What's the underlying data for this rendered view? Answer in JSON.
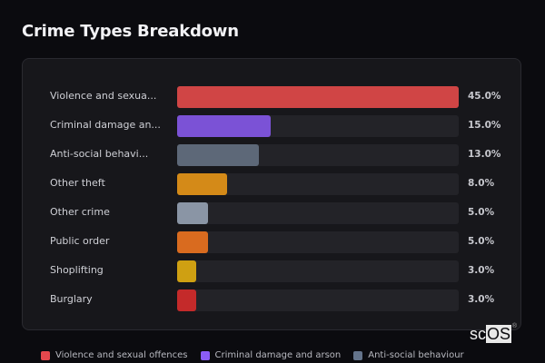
{
  "header": {
    "title": "Crime Types Breakdown"
  },
  "chart_data": {
    "type": "bar",
    "orientation": "horizontal",
    "title": "Crime Types Breakdown",
    "categories": [
      "Violence and sexual offences",
      "Criminal damage and arson",
      "Anti-social behaviour",
      "Other theft",
      "Other crime",
      "Public order",
      "Shoplifting",
      "Burglary"
    ],
    "display_labels": [
      "Violence and sexua...",
      "Criminal damage an...",
      "Anti-social behavi...",
      "Other theft",
      "Other crime",
      "Public order",
      "Shoplifting",
      "Burglary"
    ],
    "values": [
      45.0,
      15.0,
      13.0,
      8.0,
      5.0,
      5.0,
      3.0,
      3.0
    ],
    "value_labels": [
      "45.0%",
      "15.0%",
      "13.0%",
      "8.0%",
      "5.0%",
      "5.0%",
      "3.0%",
      "3.0%"
    ],
    "colors": [
      "#d04545",
      "#7b52d6",
      "#5d6878",
      "#d48a18",
      "#8a95a5",
      "#d96b1f",
      "#cfa012",
      "#c42a2a"
    ],
    "unit": "%",
    "xlabel": "",
    "ylabel": "",
    "scale_max": 45.0,
    "grid": false,
    "legend": {
      "position": "bottom",
      "entries": [
        {
          "label": "Violence and sexual offences",
          "color": "#e5484d"
        },
        {
          "label": "Criminal damage and arson",
          "color": "#8b5cf6"
        },
        {
          "label": "Anti-social behaviour",
          "color": "#64748b"
        }
      ]
    }
  },
  "watermark": {
    "prefix": "sc",
    "boxed": "OS",
    "mark": "®"
  }
}
